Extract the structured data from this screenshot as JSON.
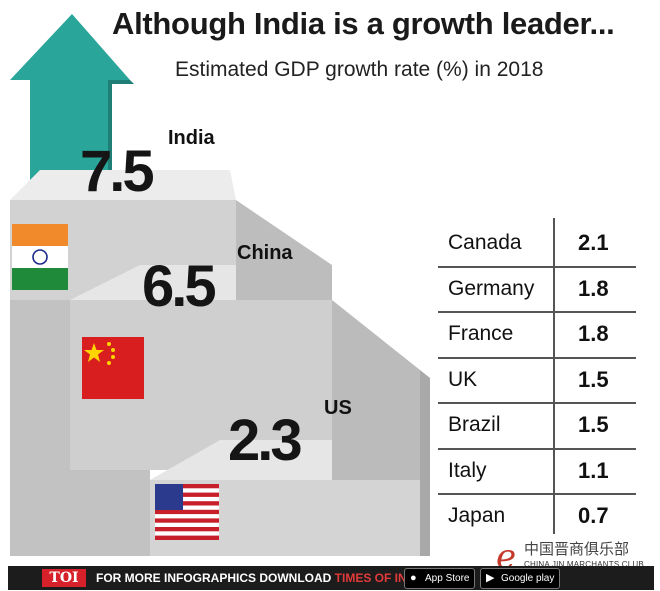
{
  "title": "Although India is a growth leader...",
  "subtitle": "Estimated GDP growth rate (%) in 2018",
  "chart_data": {
    "type": "bar",
    "title": "Although India is a growth leader...",
    "subtitle": "Estimated GDP growth rate (%) in 2018",
    "xlabel": "",
    "ylabel": "GDP growth rate (%)",
    "categories": [
      "India",
      "China",
      "US"
    ],
    "values": [
      7.5,
      6.5,
      2.3
    ],
    "value_labels": [
      "7.5",
      "6.5",
      "2.3"
    ],
    "table": {
      "countries": [
        "Canada",
        "Germany",
        "France",
        "UK",
        "Brazil",
        "Italy",
        "Japan"
      ],
      "values": [
        "2.1",
        "1.8",
        "1.8",
        "1.5",
        "1.5",
        "1.1",
        "0.7"
      ]
    }
  },
  "colors": {
    "arrow": "#2aa59a",
    "stair_top": "#e4e4e4",
    "stair_front": "#c9c9c9",
    "stair_side": "#b2b2b2",
    "toi_red": "#d6202a"
  },
  "icons": [
    "up-arrow-icon",
    "india-flag-icon",
    "china-flag-icon",
    "us-flag-icon",
    "apple-icon",
    "google-play-icon"
  ],
  "footer": {
    "logo": "TOI",
    "text": "FOR MORE INFOGRAPHICS DOWNLOAD",
    "app": "TIMES OF INDIA APP",
    "app_store": "App Store",
    "google_play": "Google play"
  },
  "watermark": {
    "logo_letter": "e",
    "chinese": "中国晋商俱乐部",
    "english": "CHINA JIN MARCHANTS CLUB"
  }
}
